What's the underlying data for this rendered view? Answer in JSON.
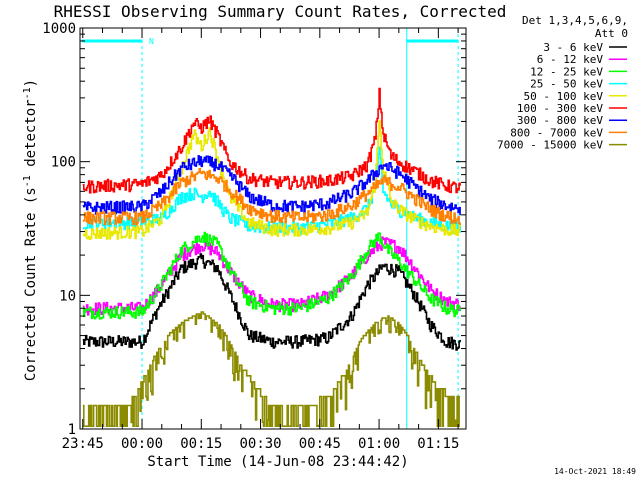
{
  "chart_data": {
    "type": "line",
    "title": "RHESSI Observing Summary Count Rates, Corrected",
    "xlabel": "Start Time (14-Jun-08 23:44:42)",
    "ylabel": "Corrected Count Rate (s",
    "ylabel_superscript": "-1",
    "ylabel_suffix": " detector",
    "ylabel_suffix_superscript": "-1",
    "ylabel_end": ")",
    "x_unit": "minutes",
    "x_range": [
      -0.7,
      97
    ],
    "y_range": [
      1,
      1000
    ],
    "y_scale": "log",
    "x_ticks": [
      {
        "value": 0,
        "label": "23:45"
      },
      {
        "value": 15,
        "label": "00:00"
      },
      {
        "value": 30,
        "label": "00:15"
      },
      {
        "value": 45,
        "label": "00:30"
      },
      {
        "value": 60,
        "label": "00:45"
      },
      {
        "value": 75,
        "label": "01:00"
      },
      {
        "value": 90,
        "label": "01:15"
      }
    ],
    "y_ticks": [
      {
        "value": 1,
        "label": "1"
      },
      {
        "value": 10,
        "label": "10"
      },
      {
        "value": 100,
        "label": "100"
      },
      {
        "value": 1000,
        "label": "1000"
      }
    ],
    "legend_header": [
      "Det 1,3,4,5,6,9,",
      "Att 0"
    ],
    "legend_position": "right",
    "night_boundaries": [
      15,
      82,
      95
    ],
    "night_marker_label": "N",
    "night_color": "#00FFFF",
    "grid": false,
    "series": [
      {
        "name": "3 - 6 keV",
        "color": "#000000",
        "points": [
          [
            0,
            4.5
          ],
          [
            15,
            4.5
          ],
          [
            19,
            8
          ],
          [
            25,
            16
          ],
          [
            30,
            18.5
          ],
          [
            34,
            16
          ],
          [
            38,
            9
          ],
          [
            42,
            5
          ],
          [
            48,
            4.5
          ],
          [
            55,
            4.5
          ],
          [
            62,
            4.8
          ],
          [
            68,
            7
          ],
          [
            72,
            12
          ],
          [
            76,
            16.5
          ],
          [
            80,
            15
          ],
          [
            84,
            10
          ],
          [
            88,
            6
          ],
          [
            92,
            4.5
          ],
          [
            96,
            4.3
          ]
        ]
      },
      {
        "name": "6 - 12 keV",
        "color": "#FF00FF",
        "points": [
          [
            0,
            8
          ],
          [
            15,
            8
          ],
          [
            19,
            11
          ],
          [
            25,
            20
          ],
          [
            30,
            24
          ],
          [
            34,
            21
          ],
          [
            38,
            14
          ],
          [
            42,
            10
          ],
          [
            48,
            8.5
          ],
          [
            55,
            8.5
          ],
          [
            62,
            10
          ],
          [
            68,
            14
          ],
          [
            72,
            20
          ],
          [
            76,
            25
          ],
          [
            80,
            23
          ],
          [
            84,
            16
          ],
          [
            88,
            11
          ],
          [
            92,
            9
          ],
          [
            96,
            8.5
          ]
        ]
      },
      {
        "name": "12 - 25 keV",
        "color": "#00FF00",
        "points": [
          [
            0,
            7.5
          ],
          [
            15,
            7.5
          ],
          [
            19,
            11
          ],
          [
            25,
            22
          ],
          [
            30,
            28
          ],
          [
            34,
            24
          ],
          [
            38,
            14
          ],
          [
            42,
            9
          ],
          [
            48,
            8
          ],
          [
            55,
            8
          ],
          [
            62,
            9.5
          ],
          [
            68,
            14
          ],
          [
            72,
            22
          ],
          [
            75,
            28
          ],
          [
            77,
            22
          ],
          [
            80,
            18
          ],
          [
            84,
            13
          ],
          [
            88,
            9.5
          ],
          [
            92,
            8
          ],
          [
            96,
            7.5
          ]
        ]
      },
      {
        "name": "25 - 50 keV",
        "color": "#00FFFF",
        "points": [
          [
            0,
            35
          ],
          [
            15,
            35
          ],
          [
            20,
            38
          ],
          [
            25,
            55
          ],
          [
            28,
            58
          ],
          [
            30,
            55
          ],
          [
            32,
            60
          ],
          [
            34,
            50
          ],
          [
            37,
            38
          ],
          [
            42,
            33
          ],
          [
            48,
            32
          ],
          [
            55,
            32
          ],
          [
            62,
            34
          ],
          [
            68,
            38
          ],
          [
            72,
            45
          ],
          [
            74,
            65
          ],
          [
            75,
            120
          ],
          [
            76,
            60
          ],
          [
            78,
            48
          ],
          [
            81,
            42
          ],
          [
            84,
            38
          ],
          [
            88,
            35
          ],
          [
            92,
            33
          ],
          [
            96,
            32
          ]
        ]
      },
      {
        "name": "50 - 100 keV",
        "color": "#E8E800",
        "points": [
          [
            0,
            29
          ],
          [
            15,
            30
          ],
          [
            20,
            38
          ],
          [
            25,
            90
          ],
          [
            28,
            160
          ],
          [
            30,
            130
          ],
          [
            32,
            170
          ],
          [
            34,
            110
          ],
          [
            37,
            55
          ],
          [
            42,
            35
          ],
          [
            48,
            31
          ],
          [
            55,
            31
          ],
          [
            62,
            32
          ],
          [
            68,
            35
          ],
          [
            72,
            42
          ],
          [
            74,
            70
          ],
          [
            75,
            200
          ],
          [
            76,
            90
          ],
          [
            78,
            50
          ],
          [
            81,
            42
          ],
          [
            84,
            37
          ],
          [
            88,
            33
          ],
          [
            92,
            31
          ],
          [
            96,
            30
          ]
        ]
      },
      {
        "name": "100 - 300 keV",
        "color": "#FF0000",
        "points": [
          [
            0,
            65
          ],
          [
            15,
            68
          ],
          [
            20,
            80
          ],
          [
            25,
            130
          ],
          [
            28,
            195
          ],
          [
            30,
            180
          ],
          [
            32,
            205
          ],
          [
            34,
            160
          ],
          [
            37,
            100
          ],
          [
            42,
            75
          ],
          [
            48,
            70
          ],
          [
            55,
            70
          ],
          [
            62,
            72
          ],
          [
            68,
            78
          ],
          [
            72,
            95
          ],
          [
            74,
            150
          ],
          [
            75,
            320
          ],
          [
            76,
            160
          ],
          [
            78,
            110
          ],
          [
            81,
            95
          ],
          [
            84,
            85
          ],
          [
            88,
            72
          ],
          [
            92,
            66
          ],
          [
            96,
            63
          ]
        ]
      },
      {
        "name": "300 - 800 keV",
        "color": "#0000FF",
        "points": [
          [
            0,
            45
          ],
          [
            15,
            46
          ],
          [
            20,
            60
          ],
          [
            25,
            90
          ],
          [
            30,
            102
          ],
          [
            34,
            95
          ],
          [
            38,
            75
          ],
          [
            42,
            55
          ],
          [
            48,
            47
          ],
          [
            55,
            46
          ],
          [
            62,
            49
          ],
          [
            68,
            58
          ],
          [
            72,
            72
          ],
          [
            76,
            95
          ],
          [
            80,
            82
          ],
          [
            84,
            65
          ],
          [
            88,
            52
          ],
          [
            92,
            47
          ],
          [
            96,
            44
          ]
        ]
      },
      {
        "name": "800 - 7000 keV",
        "color": "#FF8000",
        "points": [
          [
            0,
            38
          ],
          [
            15,
            38
          ],
          [
            20,
            48
          ],
          [
            25,
            70
          ],
          [
            30,
            82
          ],
          [
            34,
            76
          ],
          [
            38,
            58
          ],
          [
            42,
            45
          ],
          [
            48,
            39
          ],
          [
            55,
            38
          ],
          [
            62,
            40
          ],
          [
            68,
            47
          ],
          [
            72,
            58
          ],
          [
            76,
            72
          ],
          [
            80,
            65
          ],
          [
            84,
            53
          ],
          [
            88,
            44
          ],
          [
            92,
            39
          ],
          [
            96,
            37
          ]
        ]
      },
      {
        "name": "7000 - 15000 keV",
        "color": "#8B8B00",
        "points": [
          [
            0,
            1.5
          ],
          [
            12,
            1.6
          ],
          [
            15,
            2.2
          ],
          [
            18,
            3.5
          ],
          [
            22,
            5.2
          ],
          [
            26,
            6.5
          ],
          [
            30,
            7.5
          ],
          [
            34,
            6.2
          ],
          [
            37,
            4.5
          ],
          [
            40,
            3
          ],
          [
            44,
            2
          ],
          [
            48,
            1.5
          ],
          [
            55,
            1.5
          ],
          [
            62,
            1.7
          ],
          [
            66,
            2.5
          ],
          [
            70,
            4.5
          ],
          [
            74,
            6.2
          ],
          [
            77,
            7
          ],
          [
            80,
            6.2
          ],
          [
            83,
            4.5
          ],
          [
            86,
            3
          ],
          [
            90,
            2
          ],
          [
            96,
            1.6
          ]
        ]
      }
    ]
  },
  "timestamp": "14-Oct-2021 18:49"
}
